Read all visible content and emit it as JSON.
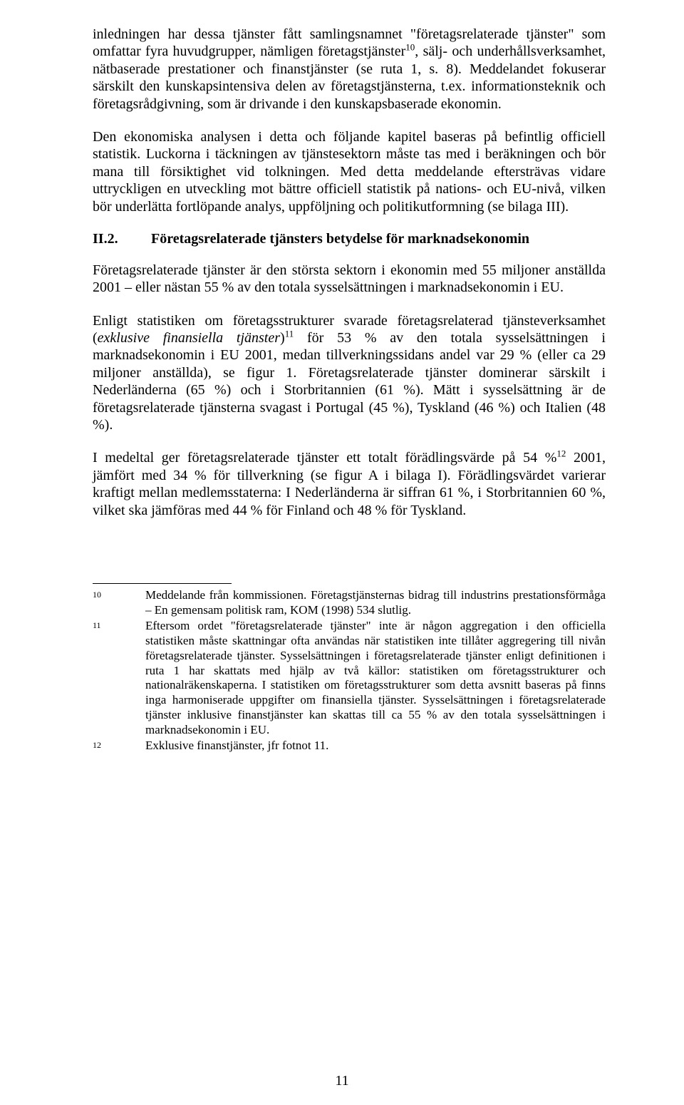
{
  "p1_a": "inledningen har dessa tjänster fått samlingsnamnet \"företagsrelaterade tjänster\" som omfattar fyra huvudgrupper, nämligen företagstjänster",
  "p1_sup": "10",
  "p1_b": ", sälj- och underhållsverksamhet, nätbaserade prestationer och finanstjänster (se ruta 1, s. 8). Meddelandet fokuserar särskilt den kunskapsintensiva delen av företagstjänsterna, t.ex. informationsteknik och företagsrådgivning, som är drivande i den kunskapsbaserade ekonomin.",
  "p2": "Den ekonomiska analysen i detta och följande kapitel baseras på befintlig officiell statistik. Luckorna i täckningen av tjänstesektorn måste tas med i beräkningen och bör mana till försiktighet vid tolkningen. Med detta meddelande eftersträvas vidare uttryckligen en utveckling mot bättre officiell statistik på nations- och EU-nivå, vilken bör underlätta fortlöpande analys, uppföljning och politikutformning (se bilaga III).",
  "heading_num": "II.2.",
  "heading_title": "Företagsrelaterade tjänsters betydelse för marknadsekonomin",
  "p3": "Företagsrelaterade tjänster är den största sektorn i ekonomin med 55 miljoner anställda 2001 – eller nästan 55 % av den totala sysselsättningen i marknadsekonomin i EU.",
  "p4_a": "Enligt statistiken om företagsstrukturer svarade företagsrelaterad tjänsteverksamhet (",
  "p4_it": "exklusive finansiella tjänster",
  "p4_b": ")",
  "p4_sup": "11",
  "p4_c": " för 53 % av den totala sysselsättningen i marknadsekonomin i EU 2001, medan tillverkningssidans andel var 29 % (eller ca 29 miljoner anställda), se figur 1. Företagsrelaterade tjänster dominerar särskilt i Nederländerna (65 %) och i Storbritannien (61 %). Mätt i sysselsättning är de företagsrelaterade tjänsterna svagast i Portugal (45 %), Tyskland (46 %) och Italien (48 %).",
  "p5_a": "I medeltal ger företagsrelaterade tjänster ett totalt förädlingsvärde på 54 %",
  "p5_sup": "12",
  "p5_b": " 2001, jämfört med 34 % för tillverkning (se figur A i bilaga I). Förädlingsvärdet varierar kraftigt mellan medlemsstaterna: I Nederländerna är siffran 61 %, i Storbritannien 60 %, vilket ska jämföras med 44 % för Finland och 48 % för Tyskland.",
  "fn10_num": "10",
  "fn10_text": "Meddelande från kommissionen. Företagstjänsternas bidrag till industrins prestationsförmåga – En gemensam politisk ram, KOM (1998) 534 slutlig.",
  "fn11_num": "11",
  "fn11_text": "Eftersom ordet \"företagsrelaterade tjänster\" inte är någon aggregation i den officiella statistiken måste skattningar ofta användas när statistiken inte tillåter aggregering till nivån företagsrelaterade tjänster. Sysselsättningen i företagsrelaterade tjänster enligt definitionen i ruta 1 har skattats med hjälp av två källor: statistiken om företagsstrukturer och nationalräkenskaperna. I statistiken om företagsstrukturer som detta avsnitt baseras på finns inga harmoniserade uppgifter om finansiella tjänster. Sysselsättningen i företagsrelaterade tjänster inklusive finanstjänster kan skattas till ca 55 % av den totala sysselsättningen i marknadsekonomin i EU.",
  "fn12_num": "12",
  "fn12_text": "Exklusive finanstjänster, jfr fotnot 11.",
  "pagenum": "11"
}
